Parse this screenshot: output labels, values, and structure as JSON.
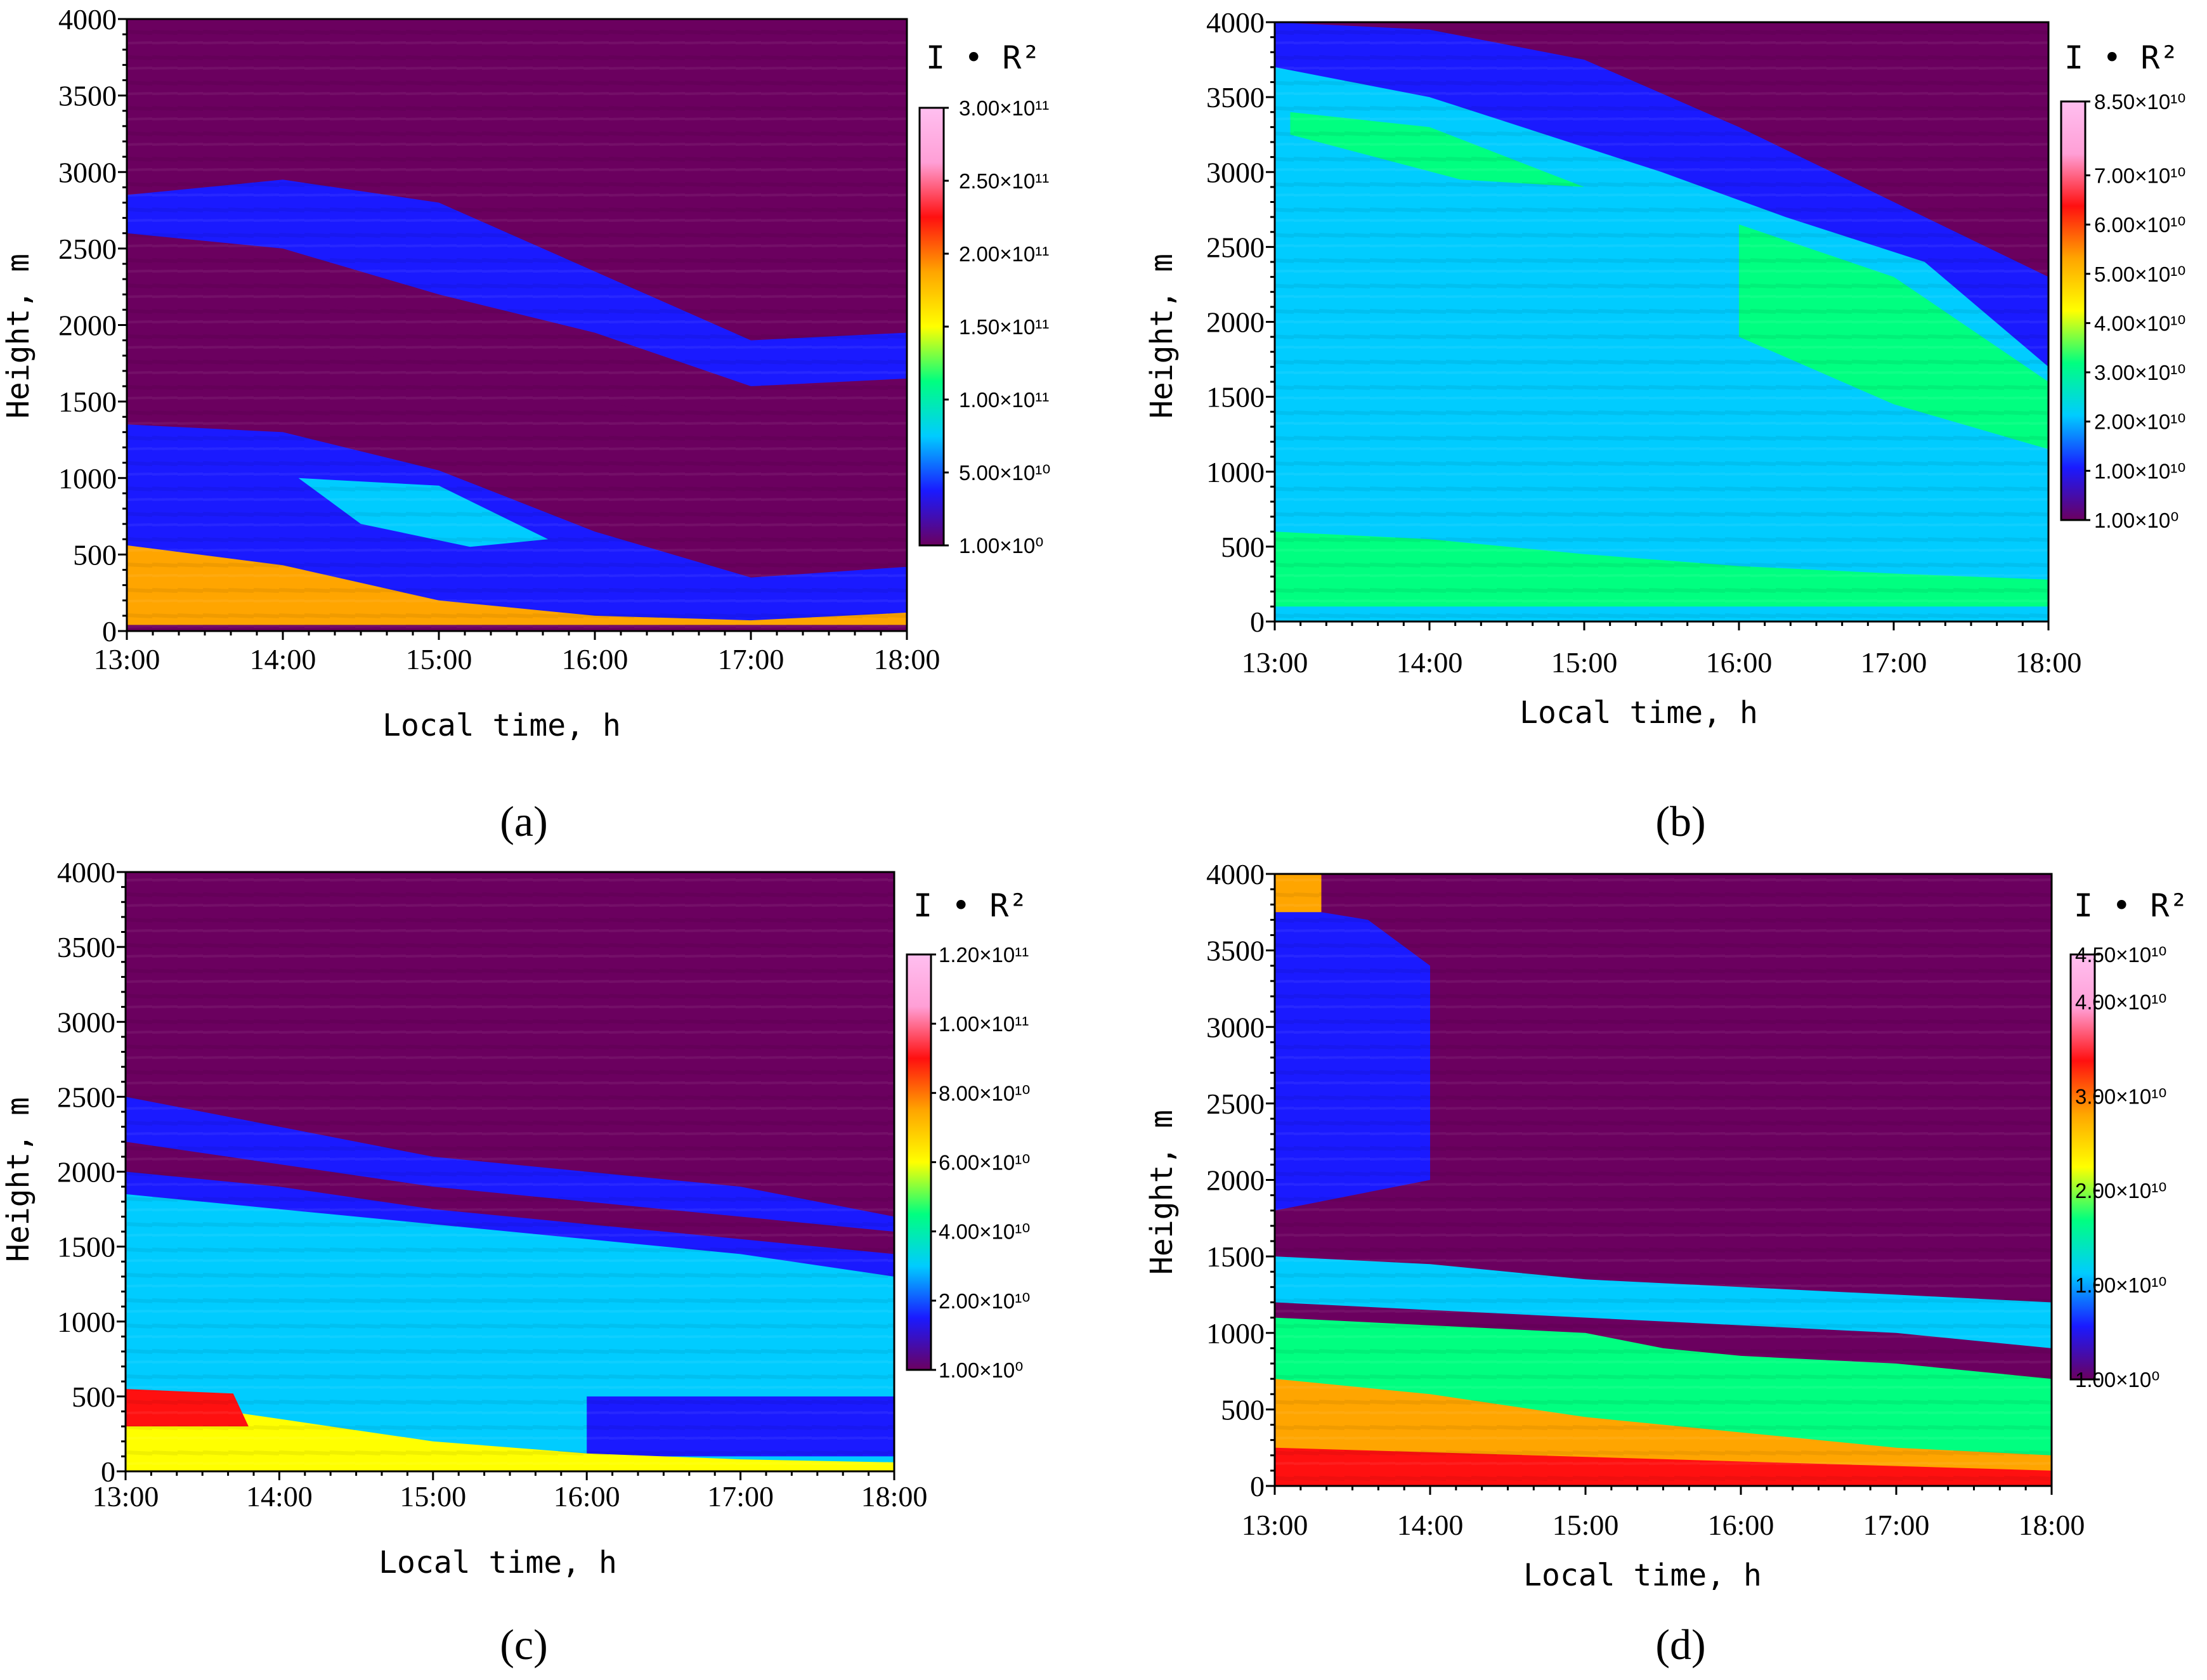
{
  "colors": {
    "colormap": [
      "#6b005f",
      "#1a1aff",
      "#00ccff",
      "#00ff80",
      "#ffff00",
      "#ffa500",
      "#ff1010",
      "#ff9fd6",
      "#ffbff0"
    ]
  },
  "chart_data": [
    {
      "type": "heatmap",
      "panel": "a",
      "panel_label": "(a)",
      "xlabel": "Local time, h",
      "ylabel": "Height, m",
      "x_ticks": [
        "13:00",
        "14:00",
        "15:00",
        "16:00",
        "17:00",
        "18:00"
      ],
      "y_ticks": [
        "0",
        "500",
        "1000",
        "1500",
        "2000",
        "2500",
        "3000",
        "3500",
        "4000"
      ],
      "xlim": [
        13,
        18
      ],
      "ylim": [
        0,
        4000
      ],
      "colorbar": {
        "title": "I • R²",
        "labels": [
          "3.00×10¹¹",
          "2.50×10¹¹",
          "2.00×10¹¹",
          "1.50×10¹¹",
          "1.00×10¹¹",
          "5.00×10¹⁰",
          "1.00×10⁰"
        ],
        "values": [
          300000000000.0,
          250000000000.0,
          200000000000.0,
          150000000000.0,
          100000000000.0,
          50000000000.0,
          1
        ]
      },
      "layers": [
        {
          "description": "background",
          "color_value": 15000000000.0
        },
        {
          "points": [
            [
              13,
              4000
            ],
            [
              18,
              4000
            ],
            [
              18,
              3300
            ],
            [
              13,
              3300
            ]
          ],
          "color_value": 0
        },
        {
          "points": [
            [
              13,
              2850
            ],
            [
              14,
              2950
            ],
            [
              15,
              2800
            ],
            [
              16,
              2350
            ],
            [
              17,
              1900
            ],
            [
              18,
              1950
            ],
            [
              18,
              1650
            ],
            [
              17,
              1600
            ],
            [
              16,
              1950
            ],
            [
              15,
              2200
            ],
            [
              14,
              2500
            ],
            [
              13,
              2600
            ]
          ],
          "color_value": 40000000000.0
        },
        {
          "points": [
            [
              13,
              2250
            ],
            [
              14,
              2200
            ],
            [
              15,
              2000
            ],
            [
              16,
              1800
            ],
            [
              17,
              1600
            ],
            [
              18,
              1500
            ],
            [
              18,
              1250
            ],
            [
              17,
              1350
            ],
            [
              16,
              1500
            ],
            [
              15,
              1750
            ],
            [
              14,
              1850
            ],
            [
              13,
              2000
            ]
          ],
          "color_value": 0
        },
        {
          "points": [
            [
              13,
              1350
            ],
            [
              14,
              1300
            ],
            [
              15,
              1050
            ],
            [
              16,
              650
            ],
            [
              17,
              350
            ],
            [
              18,
              420
            ],
            [
              18,
              50
            ],
            [
              13,
              50
            ]
          ],
          "color_value": 50000000000.0
        },
        {
          "points": [
            [
              14.1,
              1000
            ],
            [
              15,
              950
            ],
            [
              15.7,
              600
            ],
            [
              15.2,
              550
            ],
            [
              14.5,
              700
            ]
          ],
          "color_value": 90000000000.0
        },
        {
          "points": [
            [
              13,
              560
            ],
            [
              14,
              430
            ],
            [
              15,
              200
            ],
            [
              16,
              100
            ],
            [
              17,
              70
            ],
            [
              18,
              120
            ],
            [
              18,
              40
            ],
            [
              13,
              40
            ]
          ],
          "color_value": 200000000000.0
        }
      ]
    },
    {
      "type": "heatmap",
      "panel": "b",
      "panel_label": "(b)",
      "xlabel": "Local time, h",
      "ylabel": "Height, m",
      "x_ticks": [
        "13:00",
        "14:00",
        "15:00",
        "16:00",
        "17:00",
        "18:00"
      ],
      "y_ticks": [
        "0",
        "500",
        "1000",
        "1500",
        "2000",
        "2500",
        "3000",
        "3500",
        "4000"
      ],
      "xlim": [
        13,
        18
      ],
      "ylim": [
        0,
        4000
      ],
      "colorbar": {
        "title": "I • R²",
        "labels": [
          "8.50×10¹⁰",
          "7.00×10¹⁰",
          "6.00×10¹⁰",
          "5.00×10¹⁰",
          "4.00×10¹⁰",
          "3.00×10¹⁰",
          "2.00×10¹⁰",
          "1.00×10¹⁰",
          "1.00×10⁰"
        ],
        "values": [
          85000000000.0,
          70000000000.0,
          60000000000.0,
          50000000000.0,
          40000000000.0,
          30000000000.0,
          20000000000.0,
          10000000000.0,
          1
        ]
      },
      "layers": [
        {
          "description": "background",
          "color_value": 4000000000.0
        },
        {
          "points": [
            [
              13,
              4000
            ],
            [
              14,
              3950
            ],
            [
              15,
              3750
            ],
            [
              16,
              3300
            ],
            [
              17,
              2800
            ],
            [
              18,
              2300
            ],
            [
              18,
              1300
            ],
            [
              17,
              1600
            ],
            [
              16,
              2100
            ],
            [
              15,
              2700
            ],
            [
              14,
              3200
            ],
            [
              13,
              3400
            ]
          ],
          "color_value": 14000000000.0
        },
        {
          "points": [
            [
              13,
              3700
            ],
            [
              14,
              3500
            ],
            [
              15.5,
              3000
            ],
            [
              16.3,
              2700
            ],
            [
              17.2,
              2400
            ],
            [
              18,
              1700
            ],
            [
              18,
              0
            ],
            [
              13,
              0
            ]
          ],
          "color_value": 24000000000.0
        },
        {
          "points": [
            [
              13,
              2800
            ],
            [
              14,
              2500
            ],
            [
              15,
              2150
            ],
            [
              16,
              1800
            ],
            [
              17,
              1500
            ],
            [
              18,
              1250
            ],
            [
              18,
              800
            ],
            [
              17,
              1000
            ],
            [
              16,
              1200
            ],
            [
              15,
              1500
            ],
            [
              14,
              1800
            ],
            [
              13,
              2100
            ]
          ],
          "color_value": 20000000000.0
        },
        {
          "points": [
            [
              16,
              2650
            ],
            [
              17,
              2300
            ],
            [
              18,
              1600
            ],
            [
              18,
              1150
            ],
            [
              17,
              1450
            ],
            [
              16,
              1900
            ]
          ],
          "color_value": 32000000000.0
        },
        {
          "points": [
            [
              13.1,
              3400
            ],
            [
              14,
              3300
            ],
            [
              15,
              2900
            ],
            [
              14.2,
              2950
            ],
            [
              13.1,
              3250
            ]
          ],
          "color_value": 33000000000.0
        },
        {
          "points": [
            [
              13,
              600
            ],
            [
              14,
              550
            ],
            [
              15,
              450
            ],
            [
              16,
              370
            ],
            [
              17,
              320
            ],
            [
              18,
              280
            ],
            [
              18,
              100
            ],
            [
              13,
              100
            ]
          ],
          "color_value": 34000000000.0
        }
      ]
    },
    {
      "type": "heatmap",
      "panel": "c",
      "panel_label": "(c)",
      "xlabel": "Local time, h",
      "ylabel": "Height, m",
      "x_ticks": [
        "13:00",
        "14:00",
        "15:00",
        "16:00",
        "17:00",
        "18:00"
      ],
      "y_ticks": [
        "0",
        "500",
        "1000",
        "1500",
        "2000",
        "2500",
        "3000",
        "3500",
        "4000"
      ],
      "xlim": [
        13,
        18
      ],
      "ylim": [
        0,
        4000
      ],
      "colorbar": {
        "title": "I • R²",
        "labels": [
          "1.20×10¹¹",
          "1.00×10¹¹",
          "8.00×10¹⁰",
          "6.00×10¹⁰",
          "4.00×10¹⁰",
          "2.00×10¹⁰",
          "1.00×10⁰"
        ],
        "values": [
          120000000000.0,
          100000000000.0,
          80000000000.0,
          60000000000.0,
          40000000000.0,
          20000000000.0,
          1
        ]
      },
      "layers": [
        {
          "description": "background",
          "color_value": 0
        },
        {
          "points": [
            [
              13,
              2500
            ],
            [
              14,
              2300
            ],
            [
              15,
              2100
            ],
            [
              16,
              2000
            ],
            [
              17,
              1900
            ],
            [
              18,
              1700
            ],
            [
              18,
              0
            ],
            [
              13,
              0
            ]
          ],
          "color_value": 12000000000.0
        },
        {
          "points": [
            [
              13,
              2200
            ],
            [
              14,
              2050
            ],
            [
              15,
              1900
            ],
            [
              16,
              1800
            ],
            [
              17,
              1700
            ],
            [
              18,
              1600
            ],
            [
              18,
              1450
            ],
            [
              17,
              1550
            ],
            [
              16,
              1650
            ],
            [
              15,
              1750
            ],
            [
              14,
              1900
            ],
            [
              13,
              2000
            ]
          ],
          "color_value": 5000000000.0
        },
        {
          "points": [
            [
              13,
              1850
            ],
            [
              14,
              1750
            ],
            [
              15,
              1650
            ],
            [
              16,
              1550
            ],
            [
              17,
              1450
            ],
            [
              18,
              1300
            ],
            [
              18,
              0
            ],
            [
              13,
              0
            ]
          ],
          "color_value": 24000000000.0
        },
        {
          "points": [
            [
              13,
              1300
            ],
            [
              14,
              1250
            ],
            [
              15,
              1150
            ],
            [
              16,
              1000
            ],
            [
              17,
              900
            ],
            [
              18,
              800
            ],
            [
              18,
              0
            ],
            [
              13,
              0
            ]
          ],
          "color_value": 32000000000.0
        },
        {
          "points": [
            [
              16,
              500
            ],
            [
              18,
              500
            ],
            [
              18,
              100
            ],
            [
              16,
              100
            ]
          ],
          "color_value": 13000000000.0
        },
        {
          "points": [
            [
              13,
              500
            ],
            [
              14,
              350
            ],
            [
              15,
              200
            ],
            [
              16,
              120
            ],
            [
              17,
              80
            ],
            [
              18,
              60
            ],
            [
              18,
              0
            ],
            [
              13,
              0
            ]
          ],
          "color_value": 60000000000.0
        },
        {
          "points": [
            [
              13,
              550
            ],
            [
              13.7,
              520
            ],
            [
              13.8,
              300
            ],
            [
              13,
              300
            ]
          ],
          "color_value": 90000000000.0
        }
      ]
    },
    {
      "type": "heatmap",
      "panel": "d",
      "panel_label": "(d)",
      "xlabel": "Local time, h",
      "ylabel": "Height, m",
      "x_ticks": [
        "13:00",
        "14:00",
        "15:00",
        "16:00",
        "17:00",
        "18:00"
      ],
      "y_ticks": [
        "0",
        "500",
        "1000",
        "1500",
        "2000",
        "2500",
        "3000",
        "3500",
        "4000"
      ],
      "xlim": [
        13,
        18
      ],
      "ylim": [
        0,
        4000
      ],
      "colorbar": {
        "title": "I • R²",
        "labels": [
          "4.50×10¹⁰",
          "4.00×10¹⁰",
          "3.00×10¹⁰",
          "2.00×10¹⁰",
          "1.00×10¹⁰",
          "1.00×10⁰"
        ],
        "values": [
          45000000000.0,
          40000000000.0,
          30000000000.0,
          20000000000.0,
          10000000000.0,
          1
        ]
      },
      "layers": [
        {
          "description": "background",
          "color_value": 2000000000.0
        },
        {
          "points": [
            [
              13,
              3800
            ],
            [
              13.6,
              3700
            ],
            [
              14,
              3400
            ],
            [
              14,
              2000
            ],
            [
              13,
              1800
            ]
          ],
          "color_value": 8000000000.0
        },
        {
          "points": [
            [
              13,
              1500
            ],
            [
              14,
              1450
            ],
            [
              15,
              1350
            ],
            [
              16,
              1300
            ],
            [
              17,
              1250
            ],
            [
              18,
              1200
            ],
            [
              18,
              900
            ],
            [
              17,
              1000
            ],
            [
              16,
              1050
            ],
            [
              15,
              1100
            ],
            [
              14,
              1150
            ],
            [
              13,
              1200
            ]
          ],
          "color_value": 9000000000.0
        },
        {
          "points": [
            [
              13,
              1100
            ],
            [
              14,
              1050
            ],
            [
              15,
              1000
            ],
            [
              15.5,
              900
            ],
            [
              16,
              850
            ],
            [
              17,
              800
            ],
            [
              18,
              700
            ],
            [
              18,
              0
            ],
            [
              13,
              0
            ]
          ],
          "color_value": 16000000000.0
        },
        {
          "points": [
            [
              13,
              700
            ],
            [
              14,
              600
            ],
            [
              15,
              450
            ],
            [
              16,
              350
            ],
            [
              17,
              250
            ],
            [
              18,
              200
            ],
            [
              18,
              0
            ],
            [
              13,
              0
            ]
          ],
          "color_value": 26000000000.0
        },
        {
          "points": [
            [
              13,
              250
            ],
            [
              18,
              100
            ],
            [
              18,
              0
            ],
            [
              13,
              0
            ]
          ],
          "color_value": 31000000000.0
        },
        {
          "points": [
            [
              13,
              4000
            ],
            [
              13.3,
              4000
            ],
            [
              13.3,
              3750
            ],
            [
              13,
              3750
            ]
          ],
          "color_value": 30000000000.0
        }
      ]
    }
  ]
}
